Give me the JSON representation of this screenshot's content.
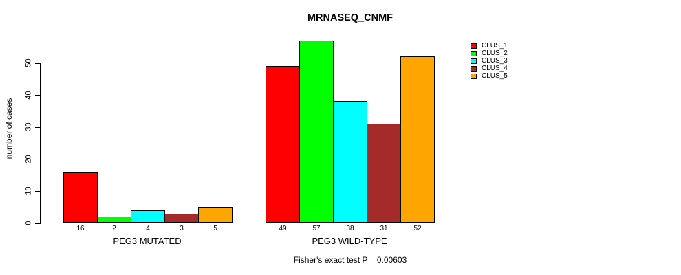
{
  "chart_data": {
    "type": "bar",
    "title": "MRNASEQ_CNMF",
    "ylabel": "number of cases",
    "xlabel": "",
    "ylim": [
      0,
      57
    ],
    "yticks": [
      0,
      10,
      20,
      30,
      40,
      50
    ],
    "grid": false,
    "legend_position": "top-right",
    "bar_value_labels": true,
    "categories": [
      "PEG3 MUTATED",
      "PEG3 WILD-TYPE"
    ],
    "series": [
      {
        "name": "CLUS_1",
        "color": "#FF0000",
        "values": [
          16,
          49
        ]
      },
      {
        "name": "CLUS_2",
        "color": "#00FF00",
        "values": [
          2,
          57
        ]
      },
      {
        "name": "CLUS_3",
        "color": "#00FFFF",
        "values": [
          4,
          38
        ]
      },
      {
        "name": "CLUS_4",
        "color": "#A52A2A",
        "values": [
          3,
          31
        ]
      },
      {
        "name": "CLUS_5",
        "color": "#FFA500",
        "values": [
          5,
          52
        ]
      }
    ],
    "caption": "Fisher's exact test P = 0.00603"
  }
}
